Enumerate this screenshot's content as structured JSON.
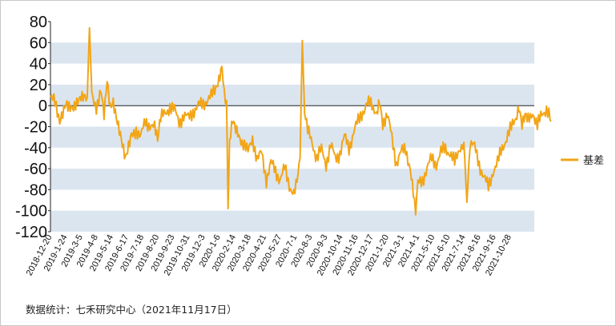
{
  "chart_data": {
    "type": "line",
    "title": "",
    "xlabel": "",
    "ylabel": "",
    "ylim": [
      -120,
      80
    ],
    "yticks": [
      80,
      60,
      40,
      20,
      0,
      -20,
      -40,
      -60,
      -80,
      -100,
      -120
    ],
    "grid": "alternating horizontal bands",
    "legend_position": "right",
    "x_ticks": [
      "2018-12-20",
      "2019-1-24",
      "2019-3-5",
      "2019-4-8",
      "2019-5-14",
      "2019-6-17",
      "2019-7-18",
      "2019-8-20",
      "2019-9-23",
      "2019-10-31",
      "2019-12-3",
      "2020-1-6",
      "2020-2-14",
      "2020-3-18",
      "2020-4-21",
      "2020-5-27",
      "2020-7-1",
      "2020-8-3",
      "2020-9-3",
      "2020-10-14",
      "2020-11-16",
      "2020-12-17",
      "2021-1-20",
      "2021-3-1",
      "2021-4-1",
      "2021-5-10",
      "2021-6-10",
      "2021-7-14",
      "2021-8-16",
      "2021-9-16",
      "2021-10-28"
    ],
    "series": [
      {
        "name": "基差",
        "color": "#F2A516",
        "keypoints": [
          [
            0,
            8
          ],
          [
            0.3,
            2
          ],
          [
            0.6,
            -12
          ],
          [
            1.0,
            4
          ],
          [
            1.5,
            0
          ],
          [
            2.0,
            5
          ],
          [
            2.4,
            8
          ],
          [
            2.55,
            74
          ],
          [
            2.7,
            10
          ],
          [
            3.0,
            0
          ],
          [
            3.3,
            12
          ],
          [
            3.5,
            -10
          ],
          [
            3.7,
            24
          ],
          [
            3.9,
            0
          ],
          [
            4.1,
            6
          ],
          [
            4.3,
            -8
          ],
          [
            4.5,
            -20
          ],
          [
            4.7,
            -35
          ],
          [
            4.9,
            -50
          ],
          [
            5.1,
            -40
          ],
          [
            5.3,
            -30
          ],
          [
            5.6,
            -22
          ],
          [
            5.9,
            -30
          ],
          [
            6.2,
            -15
          ],
          [
            6.5,
            -18
          ],
          [
            6.8,
            -22
          ],
          [
            7.0,
            -35
          ],
          [
            7.2,
            -12
          ],
          [
            7.5,
            -8
          ],
          [
            7.8,
            0
          ],
          [
            8.1,
            -5
          ],
          [
            8.4,
            -15
          ],
          [
            8.7,
            -10
          ],
          [
            9.0,
            -12
          ],
          [
            9.3,
            -5
          ],
          [
            9.6,
            -2
          ],
          [
            9.9,
            2
          ],
          [
            10.2,
            5
          ],
          [
            10.5,
            8
          ],
          [
            10.8,
            18
          ],
          [
            11.0,
            25
          ],
          [
            11.2,
            36
          ],
          [
            11.35,
            15
          ],
          [
            11.5,
            5
          ],
          [
            11.6,
            -98
          ],
          [
            11.7,
            -30
          ],
          [
            11.9,
            -10
          ],
          [
            12.1,
            -20
          ],
          [
            12.3,
            -28
          ],
          [
            12.6,
            -35
          ],
          [
            12.9,
            -45
          ],
          [
            13.2,
            -30
          ],
          [
            13.5,
            -52
          ],
          [
            13.8,
            -45
          ],
          [
            14.1,
            -70
          ],
          [
            14.4,
            -55
          ],
          [
            14.7,
            -62
          ],
          [
            15.0,
            -70
          ],
          [
            15.3,
            -60
          ],
          [
            15.6,
            -75
          ],
          [
            15.9,
            -84
          ],
          [
            16.1,
            -70
          ],
          [
            16.3,
            -50
          ],
          [
            16.45,
            62
          ],
          [
            16.6,
            -10
          ],
          [
            16.8,
            -25
          ],
          [
            17.1,
            -35
          ],
          [
            17.4,
            -50
          ],
          [
            17.7,
            -42
          ],
          [
            18.0,
            -55
          ],
          [
            18.3,
            -38
          ],
          [
            18.6,
            -50
          ],
          [
            18.9,
            -45
          ],
          [
            19.2,
            -30
          ],
          [
            19.5,
            -40
          ],
          [
            19.8,
            -25
          ],
          [
            20.1,
            -15
          ],
          [
            20.4,
            -5
          ],
          [
            20.7,
            2
          ],
          [
            21.0,
            0
          ],
          [
            21.3,
            -5
          ],
          [
            21.5,
            8
          ],
          [
            21.7,
            -15
          ],
          [
            22.0,
            -10
          ],
          [
            22.3,
            -30
          ],
          [
            22.6,
            -55
          ],
          [
            22.9,
            -45
          ],
          [
            23.2,
            -40
          ],
          [
            23.5,
            -60
          ],
          [
            23.7,
            -80
          ],
          [
            23.85,
            -103
          ],
          [
            24.0,
            -75
          ],
          [
            24.3,
            -70
          ],
          [
            24.6,
            -60
          ],
          [
            24.9,
            -50
          ],
          [
            25.2,
            -55
          ],
          [
            25.5,
            -45
          ],
          [
            25.8,
            -40
          ],
          [
            26.1,
            -45
          ],
          [
            26.4,
            -55
          ],
          [
            26.7,
            -40
          ],
          [
            27.0,
            -35
          ],
          [
            27.2,
            -92
          ],
          [
            27.4,
            -35
          ],
          [
            27.7,
            -40
          ],
          [
            28.0,
            -55
          ],
          [
            28.3,
            -68
          ],
          [
            28.6,
            -78
          ],
          [
            28.9,
            -62
          ],
          [
            29.2,
            -55
          ],
          [
            29.5,
            -40
          ],
          [
            29.8,
            -30
          ],
          [
            30.1,
            -22
          ],
          [
            30.4,
            -10
          ],
          [
            30.6,
            0
          ],
          [
            30.8,
            -18
          ],
          [
            31.0,
            -10
          ],
          [
            31.2,
            -15
          ],
          [
            31.5,
            -5
          ],
          [
            31.8,
            -20
          ],
          [
            32.1,
            -8
          ],
          [
            32.4,
            -2
          ],
          [
            32.7,
            -15
          ]
        ]
      }
    ],
    "legend": [
      {
        "label": "基差",
        "color": "#F2A516"
      }
    ]
  },
  "footer": {
    "source": "数据统计：七禾研究中心（2021年11月17日）"
  }
}
